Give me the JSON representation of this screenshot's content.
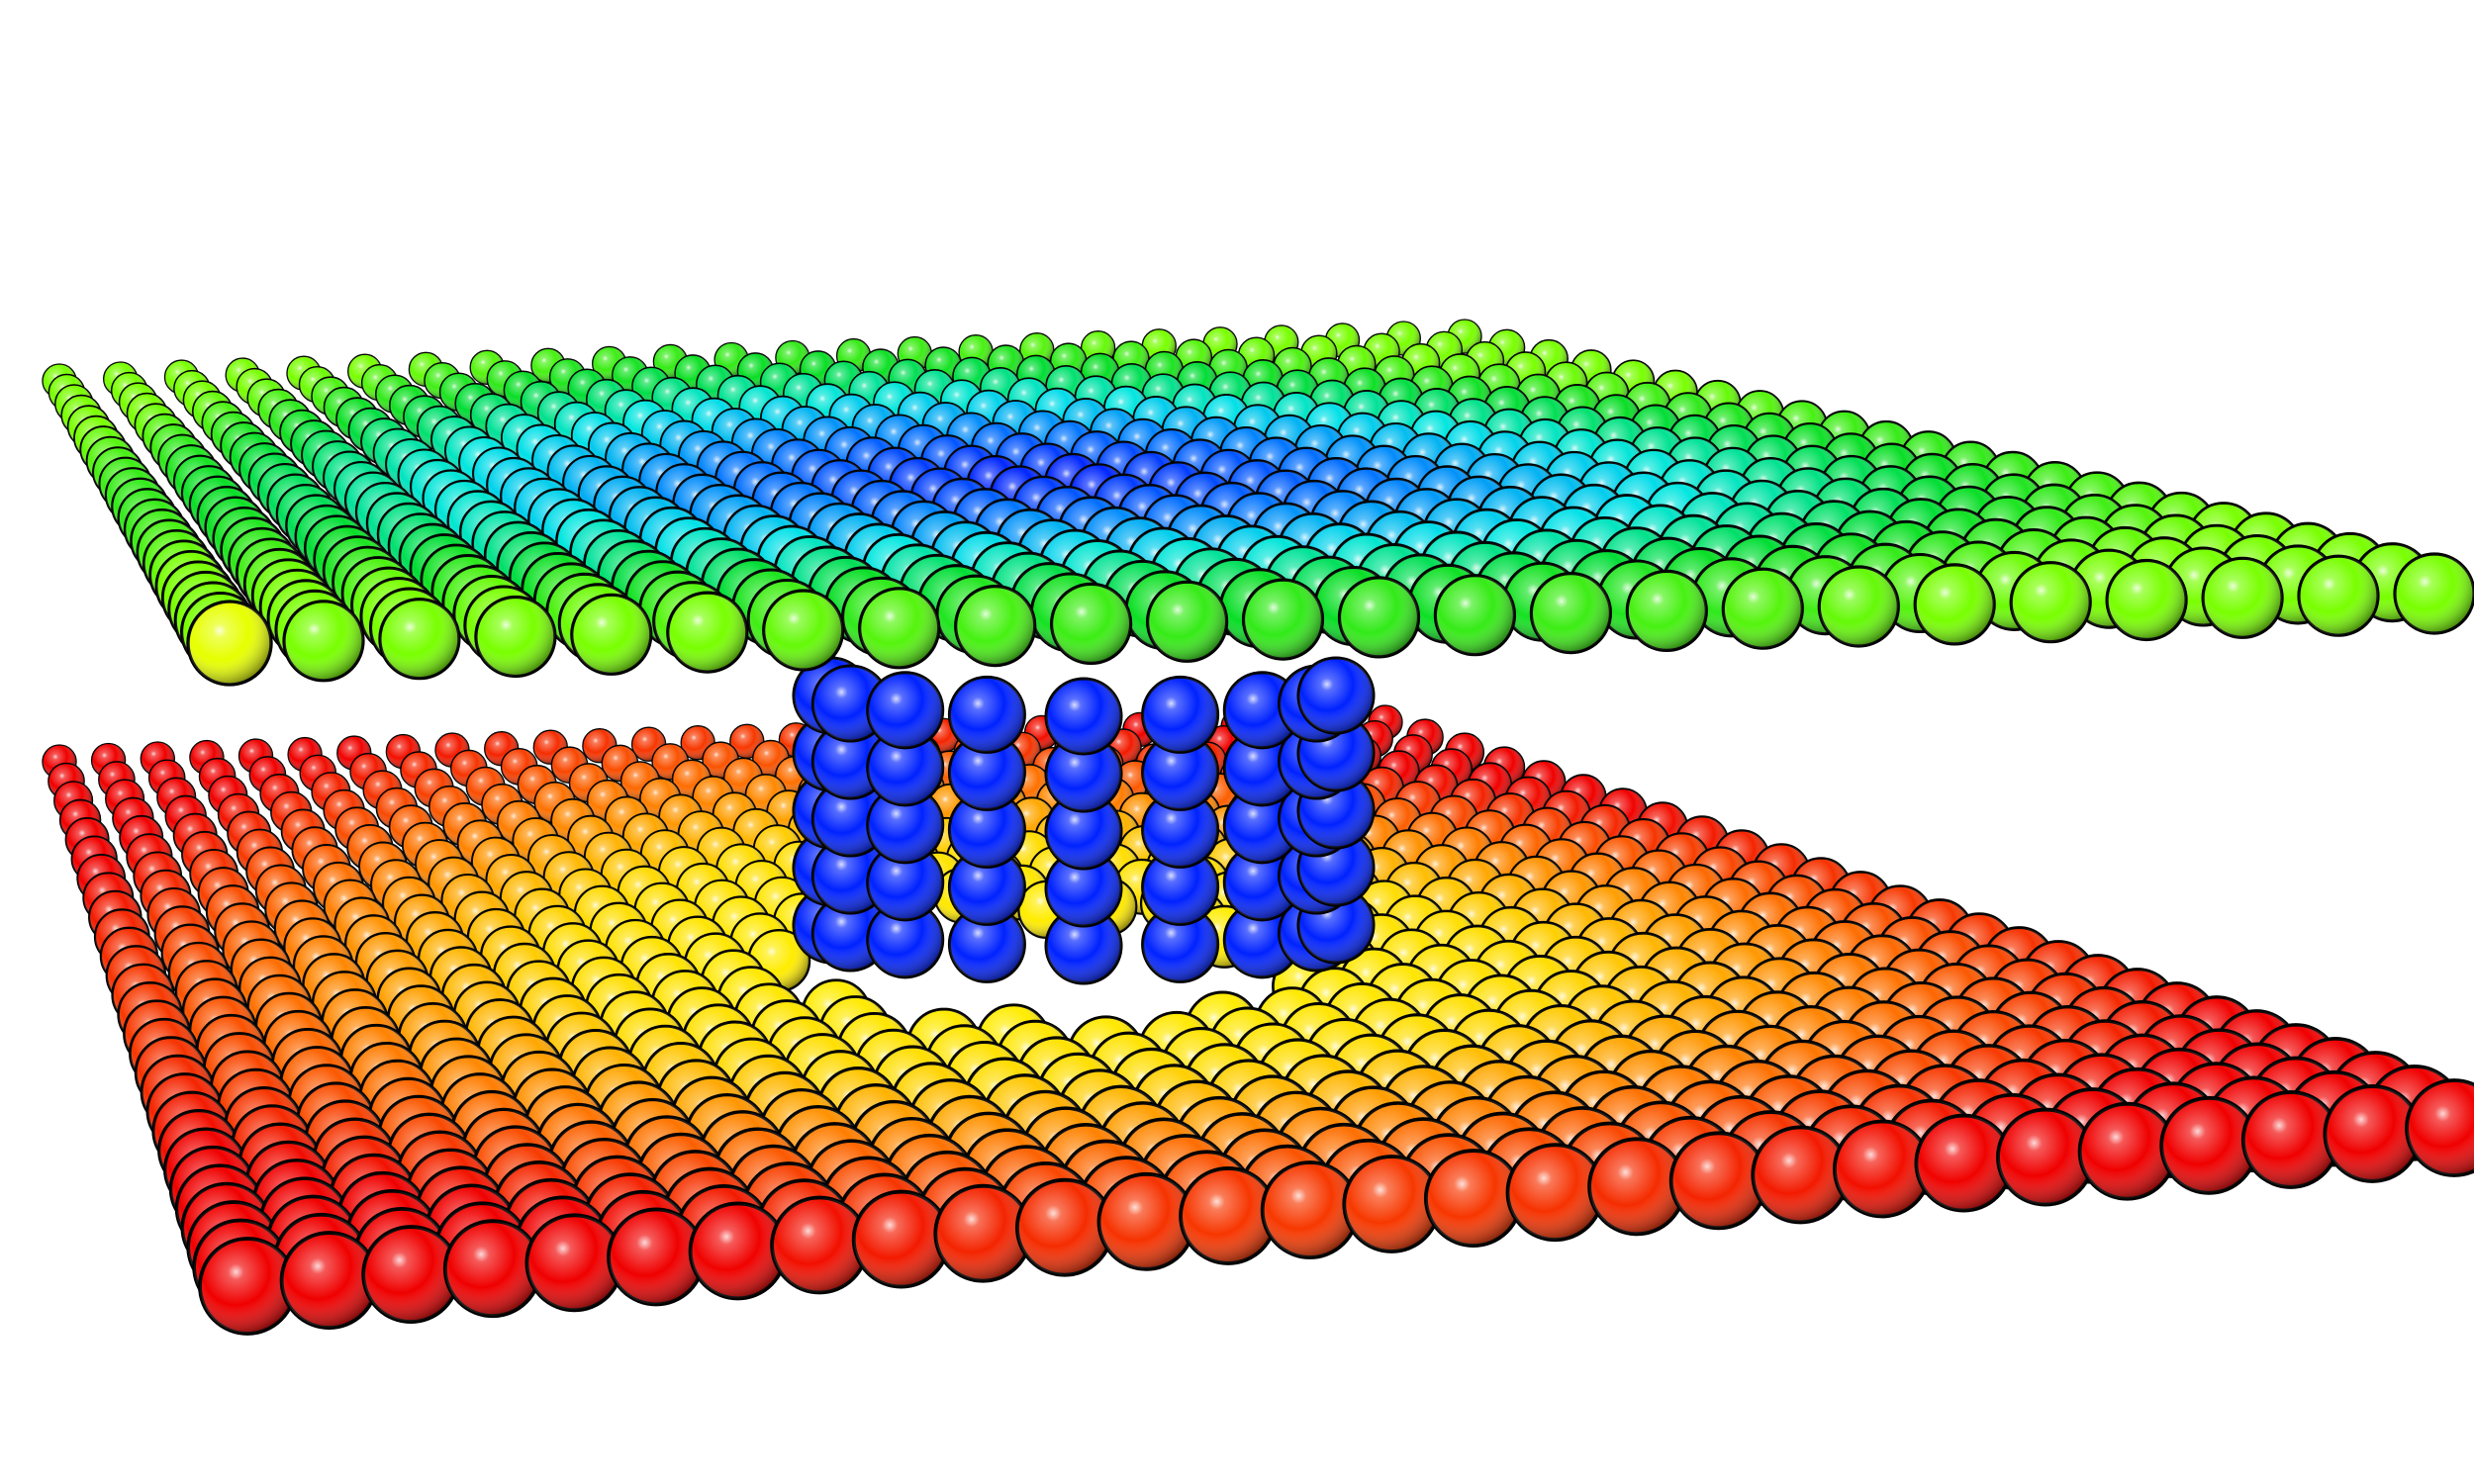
{
  "scene": {
    "background": "#ffffff",
    "sphere_outline": "#000000",
    "upper_sheet": {
      "description_colors": {
        "edge": "#7cff00",
        "corner_highlight": "#ffff00",
        "mid": "#00ffff",
        "center": "#0000ff"
      }
    },
    "lower_sheet": {
      "description_colors": {
        "edge": "#ff0000",
        "mid": "#ff8800",
        "center": "#ffff00"
      }
    },
    "pillar": {
      "color": "#0022ff"
    }
  }
}
